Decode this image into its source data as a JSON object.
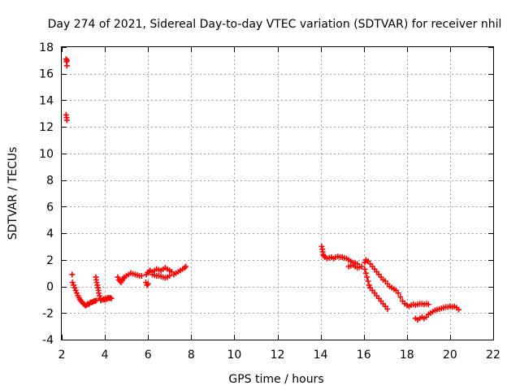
{
  "chart_data": {
    "type": "scatter",
    "title": "Day 274 of 2021, Sidereal Day-to-day VTEC variation (SDTVAR) for receiver nhil",
    "xlabel": "GPS time / hours",
    "ylabel": "SDTVAR / TECUs",
    "xlim": [
      2,
      22
    ],
    "ylim": [
      -4,
      18
    ],
    "xticks": [
      2,
      4,
      6,
      8,
      10,
      12,
      14,
      16,
      18,
      20,
      22
    ],
    "yticks": [
      -4,
      -2,
      0,
      2,
      4,
      6,
      8,
      10,
      12,
      14,
      16,
      18
    ],
    "grid": true,
    "marker": "+",
    "marker_color": "#ff0000",
    "series": [
      {
        "name": "SDTVAR",
        "points": [
          [
            2.2,
            17.1
          ],
          [
            2.22,
            16.9
          ],
          [
            2.24,
            16.6
          ],
          [
            2.25,
            17.0
          ],
          [
            2.2,
            12.9
          ],
          [
            2.22,
            12.7
          ],
          [
            2.24,
            12.5
          ],
          [
            2.48,
            0.9
          ],
          [
            2.5,
            0.3
          ],
          [
            2.55,
            0.1
          ],
          [
            2.6,
            -0.1
          ],
          [
            2.65,
            -0.3
          ],
          [
            2.7,
            -0.5
          ],
          [
            2.75,
            -0.7
          ],
          [
            2.8,
            -0.85
          ],
          [
            2.85,
            -1.0
          ],
          [
            2.9,
            -1.1
          ],
          [
            2.95,
            -1.2
          ],
          [
            3.0,
            -1.3
          ],
          [
            3.05,
            -1.35
          ],
          [
            3.1,
            -1.45
          ],
          [
            3.15,
            -1.4
          ],
          [
            3.2,
            -1.3
          ],
          [
            3.25,
            -1.35
          ],
          [
            3.3,
            -1.25
          ],
          [
            3.35,
            -1.2
          ],
          [
            3.4,
            -1.2
          ],
          [
            3.45,
            -1.15
          ],
          [
            3.5,
            -1.1
          ],
          [
            3.55,
            -1.1
          ],
          [
            3.6,
            -1.05
          ],
          [
            3.58,
            0.7
          ],
          [
            3.6,
            0.5
          ],
          [
            3.62,
            0.3
          ],
          [
            3.65,
            0.1
          ],
          [
            3.68,
            -0.1
          ],
          [
            3.7,
            -0.3
          ],
          [
            3.72,
            -0.5
          ],
          [
            3.75,
            -0.7
          ],
          [
            3.78,
            -0.9
          ],
          [
            3.8,
            -1.0
          ],
          [
            3.82,
            -1.05
          ],
          [
            3.9,
            -1.0
          ],
          [
            3.95,
            -0.95
          ],
          [
            4.0,
            -1.0
          ],
          [
            4.05,
            -0.9
          ],
          [
            4.1,
            -0.95
          ],
          [
            4.15,
            -0.85
          ],
          [
            4.2,
            -0.9
          ],
          [
            4.25,
            -0.85
          ],
          [
            4.3,
            -0.9
          ],
          [
            4.6,
            0.7
          ],
          [
            4.65,
            0.5
          ],
          [
            4.7,
            0.4
          ],
          [
            4.75,
            0.3
          ],
          [
            4.8,
            0.45
          ],
          [
            4.85,
            0.6
          ],
          [
            4.9,
            0.7
          ],
          [
            5.0,
            0.8
          ],
          [
            5.1,
            0.9
          ],
          [
            5.2,
            1.0
          ],
          [
            5.3,
            0.95
          ],
          [
            5.4,
            0.9
          ],
          [
            5.5,
            0.85
          ],
          [
            5.6,
            0.8
          ],
          [
            5.7,
            0.8
          ],
          [
            5.9,
            0.3
          ],
          [
            5.95,
            0.1
          ],
          [
            6.0,
            0.2
          ],
          [
            5.92,
            0.9
          ],
          [
            5.98,
            1.05
          ],
          [
            6.05,
            1.1
          ],
          [
            6.1,
            1.2
          ],
          [
            6.2,
            1.1
          ],
          [
            6.3,
            1.2
          ],
          [
            6.4,
            1.3
          ],
          [
            6.5,
            1.25
          ],
          [
            6.6,
            1.2
          ],
          [
            6.7,
            1.3
          ],
          [
            6.8,
            1.4
          ],
          [
            6.9,
            1.3
          ],
          [
            7.0,
            1.2
          ],
          [
            7.1,
            1.1
          ],
          [
            6.2,
            0.9
          ],
          [
            6.3,
            0.85
          ],
          [
            6.4,
            0.8
          ],
          [
            6.5,
            0.8
          ],
          [
            6.6,
            0.75
          ],
          [
            6.7,
            0.7
          ],
          [
            6.8,
            0.65
          ],
          [
            6.9,
            0.7
          ],
          [
            7.0,
            0.8
          ],
          [
            7.2,
            0.9
          ],
          [
            7.3,
            1.0
          ],
          [
            7.4,
            1.1
          ],
          [
            7.5,
            1.2
          ],
          [
            7.6,
            1.3
          ],
          [
            7.7,
            1.4
          ],
          [
            7.75,
            1.5
          ],
          [
            14.05,
            3.0
          ],
          [
            14.08,
            2.8
          ],
          [
            14.1,
            2.6
          ],
          [
            14.12,
            2.4
          ],
          [
            14.15,
            2.3
          ],
          [
            14.2,
            2.2
          ],
          [
            14.3,
            2.1
          ],
          [
            14.4,
            2.15
          ],
          [
            14.5,
            2.2
          ],
          [
            14.6,
            2.1
          ],
          [
            14.7,
            2.2
          ],
          [
            14.8,
            2.25
          ],
          [
            14.9,
            2.2
          ],
          [
            15.0,
            2.2
          ],
          [
            15.1,
            2.15
          ],
          [
            15.2,
            2.1
          ],
          [
            15.3,
            2.0
          ],
          [
            15.4,
            1.9
          ],
          [
            15.5,
            1.8
          ],
          [
            15.6,
            1.75
          ],
          [
            15.7,
            1.7
          ],
          [
            15.3,
            1.5
          ],
          [
            15.4,
            1.55
          ],
          [
            15.5,
            1.6
          ],
          [
            15.6,
            1.5
          ],
          [
            15.7,
            1.4
          ],
          [
            15.8,
            1.45
          ],
          [
            15.9,
            1.5
          ],
          [
            16.05,
            1.8
          ],
          [
            16.1,
            2.0
          ],
          [
            16.2,
            1.9
          ],
          [
            16.3,
            1.7
          ],
          [
            16.4,
            1.5
          ],
          [
            16.5,
            1.3
          ],
          [
            16.6,
            1.1
          ],
          [
            16.7,
            0.9
          ],
          [
            16.8,
            0.7
          ],
          [
            16.9,
            0.5
          ],
          [
            17.0,
            0.4
          ],
          [
            17.1,
            0.2
          ],
          [
            17.2,
            0.0
          ],
          [
            17.3,
            -0.1
          ],
          [
            17.4,
            -0.2
          ],
          [
            17.5,
            -0.3
          ],
          [
            17.6,
            -0.5
          ],
          [
            17.7,
            -0.8
          ],
          [
            17.8,
            -1.1
          ],
          [
            17.9,
            -1.3
          ],
          [
            18.0,
            -1.4
          ],
          [
            18.1,
            -1.5
          ],
          [
            18.2,
            -1.4
          ],
          [
            18.3,
            -1.35
          ],
          [
            18.4,
            -1.4
          ],
          [
            18.5,
            -1.35
          ],
          [
            18.6,
            -1.3
          ],
          [
            18.7,
            -1.3
          ],
          [
            18.8,
            -1.35
          ],
          [
            18.9,
            -1.3
          ],
          [
            19.0,
            -1.35
          ],
          [
            16.05,
            1.3
          ],
          [
            16.1,
            1.0
          ],
          [
            16.15,
            0.7
          ],
          [
            16.2,
            0.4
          ],
          [
            16.25,
            0.1
          ],
          [
            16.3,
            -0.1
          ],
          [
            16.4,
            -0.3
          ],
          [
            16.5,
            -0.5
          ],
          [
            16.6,
            -0.7
          ],
          [
            16.7,
            -0.9
          ],
          [
            16.8,
            -1.1
          ],
          [
            16.9,
            -1.3
          ],
          [
            17.0,
            -1.5
          ],
          [
            17.1,
            -1.7
          ],
          [
            18.4,
            -2.4
          ],
          [
            18.5,
            -2.5
          ],
          [
            18.6,
            -2.4
          ],
          [
            18.7,
            -2.3
          ],
          [
            18.8,
            -2.4
          ],
          [
            18.9,
            -2.3
          ],
          [
            19.0,
            -2.1
          ],
          [
            19.1,
            -2.0
          ],
          [
            19.2,
            -1.9
          ],
          [
            19.3,
            -1.8
          ],
          [
            19.4,
            -1.75
          ],
          [
            19.5,
            -1.7
          ],
          [
            19.6,
            -1.65
          ],
          [
            19.7,
            -1.6
          ],
          [
            19.8,
            -1.55
          ],
          [
            19.9,
            -1.55
          ],
          [
            20.0,
            -1.5
          ],
          [
            20.1,
            -1.55
          ],
          [
            20.2,
            -1.5
          ],
          [
            20.3,
            -1.6
          ],
          [
            20.4,
            -1.75
          ]
        ]
      }
    ]
  }
}
